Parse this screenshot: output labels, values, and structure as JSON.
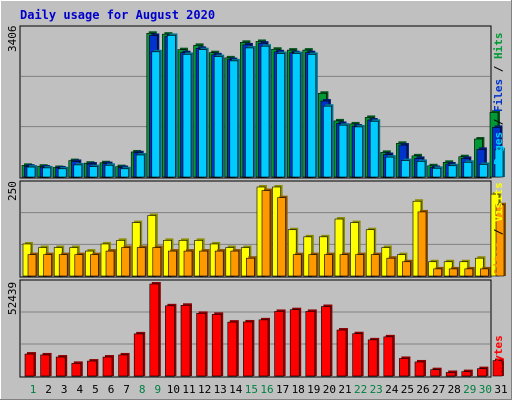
{
  "chart_data": [
    {
      "type": "bar",
      "title": "Daily usage for August 2020",
      "ymax_label": "3406",
      "right_label": [
        "Pages",
        "Files",
        "Hits"
      ],
      "categories": [
        "1",
        "2",
        "3",
        "4",
        "5",
        "6",
        "7",
        "8",
        "9",
        "10",
        "11",
        "12",
        "13",
        "14",
        "15",
        "16",
        "17",
        "18",
        "19",
        "20",
        "21",
        "22",
        "23",
        "24",
        "25",
        "26",
        "27",
        "28",
        "29",
        "30",
        "31"
      ],
      "weekend_days": [
        "1",
        "8",
        "9",
        "15",
        "16",
        "22",
        "23",
        "29",
        "30"
      ],
      "ylim": [
        0,
        3406
      ],
      "series": [
        {
          "name": "Hits",
          "values": [
            270,
            250,
            220,
            380,
            320,
            330,
            240,
            580,
            3330,
            3310,
            2950,
            3050,
            2880,
            2760,
            3120,
            3140,
            2960,
            2940,
            2940,
            1940,
            1300,
            1230,
            1380,
            570,
            780,
            490,
            260,
            340,
            470,
            880,
            1500
          ]
        },
        {
          "name": "Files",
          "values": [
            250,
            230,
            210,
            360,
            300,
            310,
            220,
            560,
            3280,
            3260,
            2880,
            2980,
            2830,
            2720,
            3060,
            3100,
            2900,
            2880,
            2880,
            1760,
            1240,
            1180,
            1320,
            520,
            740,
            430,
            220,
            300,
            430,
            640,
            1150
          ]
        },
        {
          "name": "Pages",
          "values": [
            230,
            210,
            190,
            280,
            240,
            270,
            190,
            510,
            2900,
            3280,
            2840,
            2950,
            2790,
            2690,
            2990,
            3030,
            2860,
            2860,
            2840,
            1640,
            1200,
            1160,
            1290,
            460,
            380,
            360,
            200,
            260,
            340,
            290,
            630
          ]
        }
      ],
      "colors": {
        "Hits": "#009933",
        "Files": "#0033cc",
        "Pages": "#00ccff"
      }
    },
    {
      "type": "bar",
      "ymax_label": "250",
      "right_label": [
        "Sites",
        "Visits"
      ],
      "categories": [
        "1",
        "2",
        "3",
        "4",
        "5",
        "6",
        "7",
        "8",
        "9",
        "10",
        "11",
        "12",
        "13",
        "14",
        "15",
        "16",
        "17",
        "18",
        "19",
        "20",
        "21",
        "22",
        "23",
        "24",
        "25",
        "26",
        "27",
        "28",
        "29",
        "30",
        "31"
      ],
      "ylim": [
        0,
        250
      ],
      "series": [
        {
          "name": "Visits",
          "values": [
            90,
            80,
            80,
            80,
            70,
            90,
            100,
            150,
            170,
            100,
            100,
            100,
            90,
            80,
            80,
            250,
            250,
            130,
            110,
            110,
            160,
            150,
            130,
            80,
            60,
            210,
            40,
            40,
            40,
            50,
            230
          ]
        },
        {
          "name": "Sites",
          "values": [
            60,
            60,
            60,
            60,
            60,
            70,
            80,
            80,
            80,
            70,
            70,
            70,
            70,
            70,
            50,
            240,
            220,
            60,
            60,
            60,
            60,
            60,
            60,
            50,
            40,
            180,
            20,
            20,
            20,
            20,
            200
          ]
        }
      ],
      "colors": {
        "Visits": "#ffff00",
        "Sites": "#ff9900"
      }
    },
    {
      "type": "bar",
      "ymax_label": "52439",
      "right_label": [
        "KBytes"
      ],
      "categories": [
        "1",
        "2",
        "3",
        "4",
        "5",
        "6",
        "7",
        "8",
        "9",
        "10",
        "11",
        "12",
        "13",
        "14",
        "15",
        "16",
        "17",
        "18",
        "19",
        "20",
        "21",
        "22",
        "23",
        "24",
        "25",
        "26",
        "27",
        "28",
        "29",
        "30",
        "31"
      ],
      "ylim": [
        0,
        52439
      ],
      "series": [
        {
          "name": "KBytes",
          "values": [
            12500,
            12000,
            10800,
            7200,
            8500,
            10800,
            12000,
            24000,
            52439,
            40000,
            40300,
            35700,
            35100,
            30700,
            30800,
            32000,
            36800,
            37800,
            36800,
            39600,
            26200,
            24100,
            20600,
            22300,
            10000,
            8000,
            3600,
            2000,
            2500,
            4200,
            8800
          ]
        }
      ],
      "colors": {
        "KBytes": "#ff0000"
      }
    }
  ]
}
